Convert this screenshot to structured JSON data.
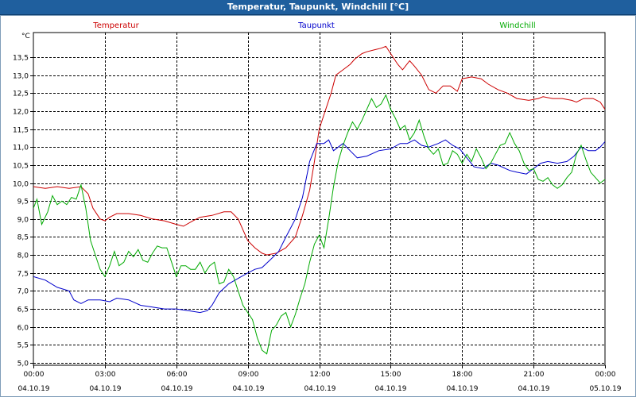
{
  "window": {
    "title": "Temperatur, Taupunkt, Windchill [°C]"
  },
  "chart_data": {
    "type": "line",
    "title": "Temperatur, Taupunkt, Windchill [°C]",
    "ylabel": "°C",
    "ylim": [
      4.9,
      14.2
    ],
    "yticks": [
      "13,5",
      "13,0",
      "12,5",
      "12,0",
      "11,5",
      "11,0",
      "10,5",
      "10,0",
      "9,5",
      "9,0",
      "8,5",
      "8,0",
      "7,5",
      "7,0",
      "6,5",
      "6,0",
      "5,5",
      "5,0"
    ],
    "xlim": [
      0,
      24
    ],
    "xticks": [
      {
        "time": "00:00",
        "date": "04.10.19"
      },
      {
        "time": "03:00",
        "date": "04.10.19"
      },
      {
        "time": "06:00",
        "date": "04.10.19"
      },
      {
        "time": "09:00",
        "date": "04.10.19"
      },
      {
        "time": "12:00",
        "date": "04.10.19"
      },
      {
        "time": "15:00",
        "date": "04.10.19"
      },
      {
        "time": "18:00",
        "date": "04.10.19"
      },
      {
        "time": "21:00",
        "date": "04.10.19"
      },
      {
        "time": "00:00",
        "date": "05.10.19"
      }
    ],
    "grid": true,
    "legend_position": "top",
    "series": [
      {
        "name": "Temperatur",
        "color": "#cc0000",
        "points": [
          [
            0,
            9.9
          ],
          [
            0.5,
            9.85
          ],
          [
            1,
            9.9
          ],
          [
            1.5,
            9.85
          ],
          [
            2,
            9.9
          ],
          [
            2.3,
            9.7
          ],
          [
            2.5,
            9.3
          ],
          [
            2.8,
            9.0
          ],
          [
            3,
            8.95
          ],
          [
            3.2,
            9.05
          ],
          [
            3.5,
            9.15
          ],
          [
            4,
            9.15
          ],
          [
            4.5,
            9.1
          ],
          [
            5,
            9.0
          ],
          [
            5.5,
            8.95
          ],
          [
            6,
            8.85
          ],
          [
            6.3,
            8.8
          ],
          [
            6.7,
            8.95
          ],
          [
            7,
            9.05
          ],
          [
            7.5,
            9.1
          ],
          [
            8,
            9.2
          ],
          [
            8.3,
            9.2
          ],
          [
            8.6,
            9.0
          ],
          [
            8.8,
            8.7
          ],
          [
            9,
            8.4
          ],
          [
            9.3,
            8.2
          ],
          [
            9.6,
            8.05
          ],
          [
            9.8,
            8.0
          ],
          [
            10.2,
            8.05
          ],
          [
            10.6,
            8.2
          ],
          [
            11,
            8.5
          ],
          [
            11.3,
            9.1
          ],
          [
            11.6,
            9.8
          ],
          [
            11.8,
            10.6
          ],
          [
            12,
            11.5
          ],
          [
            12.2,
            11.9
          ],
          [
            12.5,
            12.5
          ],
          [
            12.7,
            13.0
          ],
          [
            13,
            13.15
          ],
          [
            13.3,
            13.3
          ],
          [
            13.5,
            13.45
          ],
          [
            13.8,
            13.6
          ],
          [
            14,
            13.65
          ],
          [
            14.3,
            13.7
          ],
          [
            14.6,
            13.75
          ],
          [
            14.8,
            13.8
          ],
          [
            15,
            13.6
          ],
          [
            15.3,
            13.3
          ],
          [
            15.5,
            13.15
          ],
          [
            15.8,
            13.4
          ],
          [
            16,
            13.25
          ],
          [
            16.3,
            13.0
          ],
          [
            16.6,
            12.6
          ],
          [
            16.9,
            12.5
          ],
          [
            17.2,
            12.7
          ],
          [
            17.5,
            12.7
          ],
          [
            17.8,
            12.55
          ],
          [
            18,
            12.9
          ],
          [
            18.4,
            12.95
          ],
          [
            18.8,
            12.9
          ],
          [
            19.1,
            12.75
          ],
          [
            19.5,
            12.6
          ],
          [
            19.9,
            12.5
          ],
          [
            20.3,
            12.35
          ],
          [
            20.8,
            12.3
          ],
          [
            21.2,
            12.35
          ],
          [
            21.4,
            12.4
          ],
          [
            21.8,
            12.35
          ],
          [
            22.2,
            12.35
          ],
          [
            22.6,
            12.3
          ],
          [
            22.8,
            12.25
          ],
          [
            23.1,
            12.35
          ],
          [
            23.5,
            12.35
          ],
          [
            23.8,
            12.25
          ],
          [
            24,
            12.05
          ]
        ]
      },
      {
        "name": "Taupunkt",
        "color": "#0000cc",
        "points": [
          [
            0,
            7.4
          ],
          [
            0.5,
            7.3
          ],
          [
            1,
            7.1
          ],
          [
            1.5,
            7.0
          ],
          [
            1.7,
            6.75
          ],
          [
            2,
            6.65
          ],
          [
            2.3,
            6.75
          ],
          [
            2.8,
            6.75
          ],
          [
            3.2,
            6.7
          ],
          [
            3.5,
            6.8
          ],
          [
            4,
            6.75
          ],
          [
            4.5,
            6.6
          ],
          [
            5,
            6.55
          ],
          [
            5.5,
            6.5
          ],
          [
            6,
            6.5
          ],
          [
            6.5,
            6.45
          ],
          [
            7,
            6.4
          ],
          [
            7.3,
            6.45
          ],
          [
            7.5,
            6.6
          ],
          [
            7.8,
            6.95
          ],
          [
            8.2,
            7.2
          ],
          [
            8.6,
            7.35
          ],
          [
            9,
            7.5
          ],
          [
            9.3,
            7.6
          ],
          [
            9.6,
            7.65
          ],
          [
            10,
            7.9
          ],
          [
            10.3,
            8.1
          ],
          [
            10.6,
            8.5
          ],
          [
            11,
            9.0
          ],
          [
            11.3,
            9.6
          ],
          [
            11.6,
            10.6
          ],
          [
            11.9,
            11.1
          ],
          [
            12.2,
            11.1
          ],
          [
            12.4,
            11.2
          ],
          [
            12.6,
            10.9
          ],
          [
            12.8,
            11.0
          ],
          [
            13,
            11.1
          ],
          [
            13.3,
            10.9
          ],
          [
            13.6,
            10.7
          ],
          [
            14,
            10.75
          ],
          [
            14.5,
            10.9
          ],
          [
            15,
            10.95
          ],
          [
            15.4,
            11.1
          ],
          [
            15.7,
            11.1
          ],
          [
            16,
            11.2
          ],
          [
            16.3,
            11.05
          ],
          [
            16.6,
            11.0
          ],
          [
            17,
            11.1
          ],
          [
            17.3,
            11.2
          ],
          [
            17.6,
            11.05
          ],
          [
            17.9,
            10.95
          ],
          [
            18.2,
            10.7
          ],
          [
            18.5,
            10.45
          ],
          [
            18.9,
            10.4
          ],
          [
            19.2,
            10.55
          ],
          [
            19.5,
            10.5
          ],
          [
            20,
            10.35
          ],
          [
            20.3,
            10.3
          ],
          [
            20.7,
            10.25
          ],
          [
            21,
            10.4
          ],
          [
            21.3,
            10.55
          ],
          [
            21.6,
            10.6
          ],
          [
            22,
            10.55
          ],
          [
            22.4,
            10.6
          ],
          [
            22.7,
            10.75
          ],
          [
            23,
            11.0
          ],
          [
            23.3,
            10.9
          ],
          [
            23.6,
            10.9
          ],
          [
            23.8,
            11.0
          ],
          [
            24,
            11.15
          ]
        ]
      },
      {
        "name": "Windchill",
        "color": "#00aa00",
        "points": [
          [
            0,
            9.3
          ],
          [
            0.15,
            9.55
          ],
          [
            0.35,
            8.85
          ],
          [
            0.6,
            9.2
          ],
          [
            0.8,
            9.65
          ],
          [
            1,
            9.4
          ],
          [
            1.2,
            9.5
          ],
          [
            1.4,
            9.4
          ],
          [
            1.6,
            9.6
          ],
          [
            1.8,
            9.55
          ],
          [
            2,
            9.95
          ],
          [
            2.2,
            9.3
          ],
          [
            2.4,
            8.4
          ],
          [
            2.6,
            8.0
          ],
          [
            2.8,
            7.6
          ],
          [
            3,
            7.4
          ],
          [
            3.2,
            7.7
          ],
          [
            3.4,
            8.1
          ],
          [
            3.6,
            7.7
          ],
          [
            3.8,
            7.8
          ],
          [
            4,
            8.1
          ],
          [
            4.2,
            7.95
          ],
          [
            4.4,
            8.15
          ],
          [
            4.6,
            7.85
          ],
          [
            4.8,
            7.8
          ],
          [
            5,
            8.05
          ],
          [
            5.2,
            8.25
          ],
          [
            5.4,
            8.2
          ],
          [
            5.6,
            8.2
          ],
          [
            5.8,
            7.8
          ],
          [
            6,
            7.4
          ],
          [
            6.2,
            7.7
          ],
          [
            6.4,
            7.7
          ],
          [
            6.6,
            7.6
          ],
          [
            6.8,
            7.6
          ],
          [
            7,
            7.8
          ],
          [
            7.2,
            7.5
          ],
          [
            7.4,
            7.7
          ],
          [
            7.6,
            7.8
          ],
          [
            7.8,
            7.2
          ],
          [
            8,
            7.25
          ],
          [
            8.2,
            7.6
          ],
          [
            8.4,
            7.4
          ],
          [
            8.6,
            7.0
          ],
          [
            8.8,
            6.6
          ],
          [
            9,
            6.4
          ],
          [
            9.2,
            6.2
          ],
          [
            9.4,
            5.7
          ],
          [
            9.6,
            5.35
          ],
          [
            9.8,
            5.25
          ],
          [
            10,
            5.9
          ],
          [
            10.2,
            6.05
          ],
          [
            10.4,
            6.3
          ],
          [
            10.6,
            6.4
          ],
          [
            10.8,
            6.0
          ],
          [
            11,
            6.35
          ],
          [
            11.2,
            6.8
          ],
          [
            11.4,
            7.2
          ],
          [
            11.6,
            7.8
          ],
          [
            11.8,
            8.3
          ],
          [
            12,
            8.55
          ],
          [
            12.2,
            8.2
          ],
          [
            12.4,
            9.0
          ],
          [
            12.6,
            9.9
          ],
          [
            12.8,
            10.6
          ],
          [
            13,
            11.05
          ],
          [
            13.2,
            11.4
          ],
          [
            13.4,
            11.7
          ],
          [
            13.6,
            11.5
          ],
          [
            13.8,
            11.75
          ],
          [
            14,
            12.05
          ],
          [
            14.2,
            12.35
          ],
          [
            14.4,
            12.1
          ],
          [
            14.6,
            12.2
          ],
          [
            14.8,
            12.45
          ],
          [
            15,
            12.05
          ],
          [
            15.2,
            11.8
          ],
          [
            15.4,
            11.5
          ],
          [
            15.6,
            11.6
          ],
          [
            15.8,
            11.2
          ],
          [
            16,
            11.4
          ],
          [
            16.2,
            11.75
          ],
          [
            16.4,
            11.3
          ],
          [
            16.6,
            10.95
          ],
          [
            16.8,
            10.8
          ],
          [
            17,
            10.95
          ],
          [
            17.2,
            10.5
          ],
          [
            17.4,
            10.55
          ],
          [
            17.6,
            10.9
          ],
          [
            17.8,
            10.8
          ],
          [
            18,
            10.55
          ],
          [
            18.2,
            10.8
          ],
          [
            18.4,
            10.6
          ],
          [
            18.6,
            10.95
          ],
          [
            18.8,
            10.7
          ],
          [
            19,
            10.4
          ],
          [
            19.2,
            10.55
          ],
          [
            19.4,
            10.8
          ],
          [
            19.6,
            11.05
          ],
          [
            19.8,
            11.1
          ],
          [
            20,
            11.4
          ],
          [
            20.2,
            11.1
          ],
          [
            20.4,
            10.9
          ],
          [
            20.6,
            10.55
          ],
          [
            20.8,
            10.35
          ],
          [
            21,
            10.4
          ],
          [
            21.2,
            10.1
          ],
          [
            21.4,
            10.05
          ],
          [
            21.6,
            10.15
          ],
          [
            21.8,
            9.95
          ],
          [
            22,
            9.85
          ],
          [
            22.2,
            9.95
          ],
          [
            22.4,
            10.15
          ],
          [
            22.6,
            10.3
          ],
          [
            22.8,
            10.8
          ],
          [
            23,
            11.05
          ],
          [
            23.2,
            10.65
          ],
          [
            23.4,
            10.3
          ],
          [
            23.6,
            10.15
          ],
          [
            23.8,
            10.0
          ],
          [
            24,
            10.1
          ],
          [
            24.2,
            10.0
          ],
          [
            24.4,
            10.0
          ],
          [
            24.6,
            10.05
          ]
        ]
      }
    ]
  }
}
